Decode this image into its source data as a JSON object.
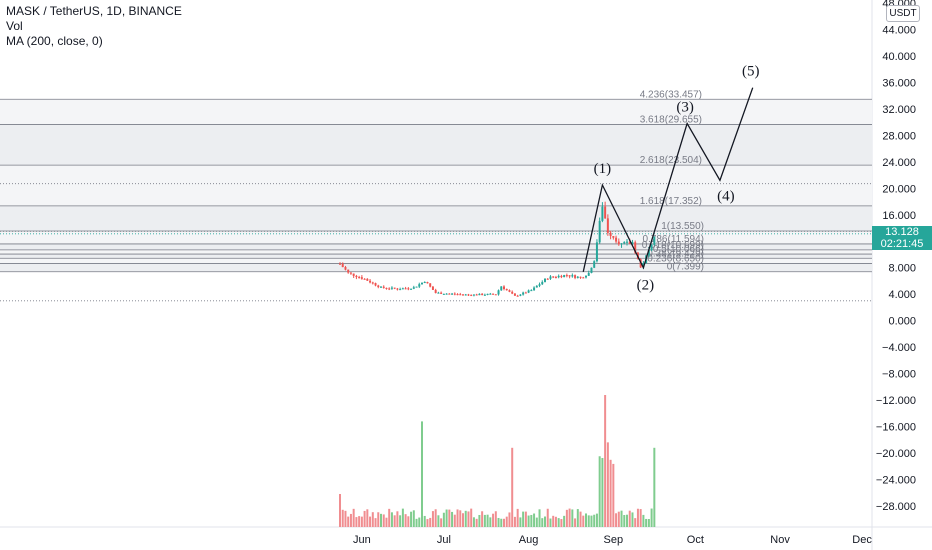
{
  "legend": {
    "symbol_line": "MASK / TetherUS, 1D, BINANCE",
    "vol": "Vol",
    "ma": "MA (200, close, 0)"
  },
  "price_axis": {
    "unit": "USDT",
    "ticks": [
      "48.000",
      "44.000",
      "40.000",
      "36.000",
      "32.000",
      "28.000",
      "24.000",
      "20.000",
      "16.000",
      "12.000",
      "8.000",
      "4.000",
      "0.000",
      "−4.000",
      "−8.000",
      "−12.000",
      "−16.000",
      "−20.000",
      "−24.000",
      "−28.000"
    ],
    "last_price": "13.128",
    "countdown": "02:21:45"
  },
  "time_axis": {
    "labels": [
      "Jun",
      "Jul",
      "Aug",
      "Sep",
      "Oct",
      "Nov",
      "Dec"
    ]
  },
  "fib_levels": [
    {
      "label": "0(7.399)",
      "value": 7.399
    },
    {
      "label": "0.236(8.650)",
      "value": 8.65
    },
    {
      "label": "0.382(9.429)",
      "value": 9.429
    },
    {
      "label": "0.5(10.066)",
      "value": 10.066
    },
    {
      "label": "0.618(10.699)",
      "value": 10.699
    },
    {
      "label": "0.786(11.594)",
      "value": 11.594
    },
    {
      "label": "1(13.550)",
      "value": 13.55
    },
    {
      "label": "1.618(17.352)",
      "value": 17.352
    },
    {
      "label": "2.618(23.504)",
      "value": 23.504
    },
    {
      "label": "3.618(29.655)",
      "value": 29.655
    },
    {
      "label": "4.236(33.457)",
      "value": 33.457
    }
  ],
  "waves": [
    "(1)",
    "(2)",
    "(3)",
    "(4)",
    "(5)"
  ],
  "colors": {
    "up": "#26a69a",
    "down": "#ef5350",
    "vol_up": "#7fcc8e",
    "vol_down": "#f08d90",
    "last_price": "#26a69a",
    "wave_line": "#131722"
  },
  "chart_data": {
    "type": "candlestick",
    "symbol": "MASK / TetherUS",
    "interval": "1D",
    "exchange": "BINANCE",
    "ylim": [
      -30,
      48
    ],
    "x_range": [
      "2021-05-24",
      "2021-12-08"
    ],
    "price_path": [
      {
        "date": "2021-05-24",
        "close": 8.6
      },
      {
        "date": "2021-05-27",
        "close": 7.2
      },
      {
        "date": "2021-06-02",
        "close": 6.3
      },
      {
        "date": "2021-06-08",
        "close": 5.0
      },
      {
        "date": "2021-06-14",
        "close": 4.8
      },
      {
        "date": "2021-06-20",
        "close": 5.0
      },
      {
        "date": "2021-06-24",
        "close": 6.0
      },
      {
        "date": "2021-06-28",
        "close": 4.2
      },
      {
        "date": "2021-07-10",
        "close": 3.9
      },
      {
        "date": "2021-07-20",
        "close": 4.0
      },
      {
        "date": "2021-07-22",
        "close": 5.2
      },
      {
        "date": "2021-07-27",
        "close": 3.7
      },
      {
        "date": "2021-08-02",
        "close": 4.6
      },
      {
        "date": "2021-08-08",
        "close": 6.5
      },
      {
        "date": "2021-08-15",
        "close": 6.9
      },
      {
        "date": "2021-08-20",
        "close": 6.5
      },
      {
        "date": "2021-08-23",
        "close": 7.2
      },
      {
        "date": "2021-08-25",
        "close": 9.2
      },
      {
        "date": "2021-08-28",
        "close": 17.5
      },
      {
        "date": "2021-08-30",
        "close": 13.5
      },
      {
        "date": "2021-09-04",
        "close": 11.5
      },
      {
        "date": "2021-09-08",
        "close": 11.8
      },
      {
        "date": "2021-09-11",
        "close": 8.0
      },
      {
        "date": "2021-09-14",
        "close": 10.5
      },
      {
        "date": "2021-09-16",
        "close": 13.1
      }
    ],
    "volume_relative": [
      {
        "date": "2021-05-24",
        "v": 0.25
      },
      {
        "date": "2021-06-23",
        "v": 0.8
      },
      {
        "date": "2021-07-26",
        "v": 0.6
      },
      {
        "date": "2021-08-29",
        "v": 1.0
      },
      {
        "date": "2021-09-16",
        "v": 0.6
      }
    ],
    "wave_points": [
      {
        "label": "(1)",
        "date": "2021-08-28",
        "value": 20.5
      },
      {
        "label": "(2)",
        "date": "2021-09-12",
        "value": 8.0
      },
      {
        "label": "(3)",
        "date": "2021-09-28",
        "value": 29.8
      },
      {
        "label": "(4)",
        "date": "2021-10-10",
        "value": 21.2
      },
      {
        "label": "(5)",
        "date": "2021-10-22",
        "value": 35.2
      }
    ],
    "reference_lines": [
      20.7,
      13.5,
      3.0
    ],
    "last_price": 13.128
  }
}
